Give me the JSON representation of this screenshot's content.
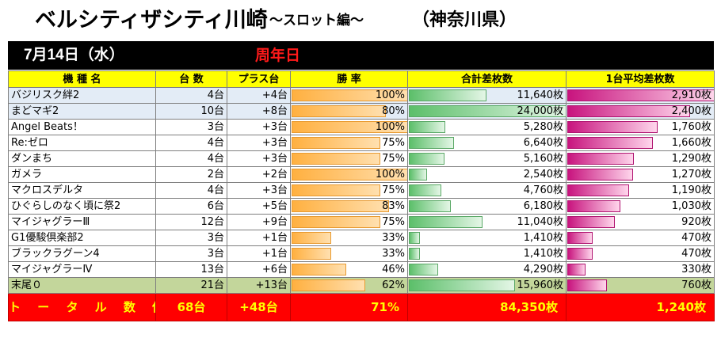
{
  "header": {
    "title": "ベルシティザシティ川崎",
    "subtitle": "～スロット編～",
    "prefecture": "（神奈川県）"
  },
  "dateband": {
    "date": "7月14日（水）",
    "event": "周年日"
  },
  "columns": [
    "機 種 名",
    "台 数",
    "プラス台",
    "勝 率",
    "合計差枚数",
    "1台平均差枚数"
  ],
  "rows": [
    {
      "name": "バジリスク絆2",
      "units": "4台",
      "plus": "+4台",
      "rate": "100%",
      "total": "11,640枚",
      "avg": "2,910枚",
      "rate_pct": 100,
      "total_val": 11640,
      "avg_val": 2910,
      "shade": "b"
    },
    {
      "name": "まどマギ2",
      "units": "10台",
      "plus": "+8台",
      "rate": "80%",
      "total": "24,000枚",
      "avg": "2,400枚",
      "rate_pct": 80,
      "total_val": 24000,
      "avg_val": 2400,
      "shade": "b"
    },
    {
      "name": "Angel Beats！",
      "units": "3台",
      "plus": "+3台",
      "rate": "100%",
      "total": "5,280枚",
      "avg": "1,760枚",
      "rate_pct": 100,
      "total_val": 5280,
      "avg_val": 1760,
      "shade": "w"
    },
    {
      "name": "Re:ゼロ",
      "units": "4台",
      "plus": "+3台",
      "rate": "75%",
      "total": "6,640枚",
      "avg": "1,660枚",
      "rate_pct": 75,
      "total_val": 6640,
      "avg_val": 1660,
      "shade": "w"
    },
    {
      "name": "ダンまち",
      "units": "4台",
      "plus": "+3台",
      "rate": "75%",
      "total": "5,160枚",
      "avg": "1,290枚",
      "rate_pct": 75,
      "total_val": 5160,
      "avg_val": 1290,
      "shade": "w"
    },
    {
      "name": "ガメラ",
      "units": "2台",
      "plus": "+2台",
      "rate": "100%",
      "total": "2,540枚",
      "avg": "1,270枚",
      "rate_pct": 100,
      "total_val": 2540,
      "avg_val": 1270,
      "shade": "w"
    },
    {
      "name": "マクロスデルタ",
      "units": "4台",
      "plus": "+3台",
      "rate": "75%",
      "total": "4,760枚",
      "avg": "1,190枚",
      "rate_pct": 75,
      "total_val": 4760,
      "avg_val": 1190,
      "shade": "w"
    },
    {
      "name": "ひぐらしのなく頃に祭2",
      "units": "6台",
      "plus": "+5台",
      "rate": "83%",
      "total": "6,180枚",
      "avg": "1,030枚",
      "rate_pct": 83,
      "total_val": 6180,
      "avg_val": 1030,
      "shade": "w"
    },
    {
      "name": "マイジャグラーⅢ",
      "units": "12台",
      "plus": "+9台",
      "rate": "75%",
      "total": "11,040枚",
      "avg": "920枚",
      "rate_pct": 75,
      "total_val": 11040,
      "avg_val": 920,
      "shade": "w"
    },
    {
      "name": "G1優駿倶楽部2",
      "units": "3台",
      "plus": "+1台",
      "rate": "33%",
      "total": "1,410枚",
      "avg": "470枚",
      "rate_pct": 33,
      "total_val": 1410,
      "avg_val": 470,
      "shade": "w"
    },
    {
      "name": "ブラックラグーン4",
      "units": "3台",
      "plus": "+1台",
      "rate": "33%",
      "total": "1,410枚",
      "avg": "470枚",
      "rate_pct": 33,
      "total_val": 1410,
      "avg_val": 470,
      "shade": "w"
    },
    {
      "name": "マイジャグラーⅣ",
      "units": "13台",
      "plus": "+6台",
      "rate": "46%",
      "total": "4,290枚",
      "avg": "330枚",
      "rate_pct": 46,
      "total_val": 4290,
      "avg_val": 330,
      "shade": "w"
    },
    {
      "name": "末尾０",
      "units": "21台",
      "plus": "+13台",
      "rate": "62%",
      "total": "15,960枚",
      "avg": "760枚",
      "rate_pct": 62,
      "total_val": 15960,
      "avg_val": 760,
      "shade": "g"
    }
  ],
  "totals": {
    "label": "ト ー タ ル 数 値",
    "units": "68台",
    "plus": "+48台",
    "rate": "71%",
    "total": "84,350枚",
    "avg": "1,240枚"
  },
  "colors": {
    "rate_bar": "#ffb040",
    "total_bar": "#5cbf6a",
    "avg_bar": "#c8147e",
    "header_bg": "#ffff00",
    "total_row_bg": "#ff0000",
    "total_row_text": "#ffff00"
  }
}
